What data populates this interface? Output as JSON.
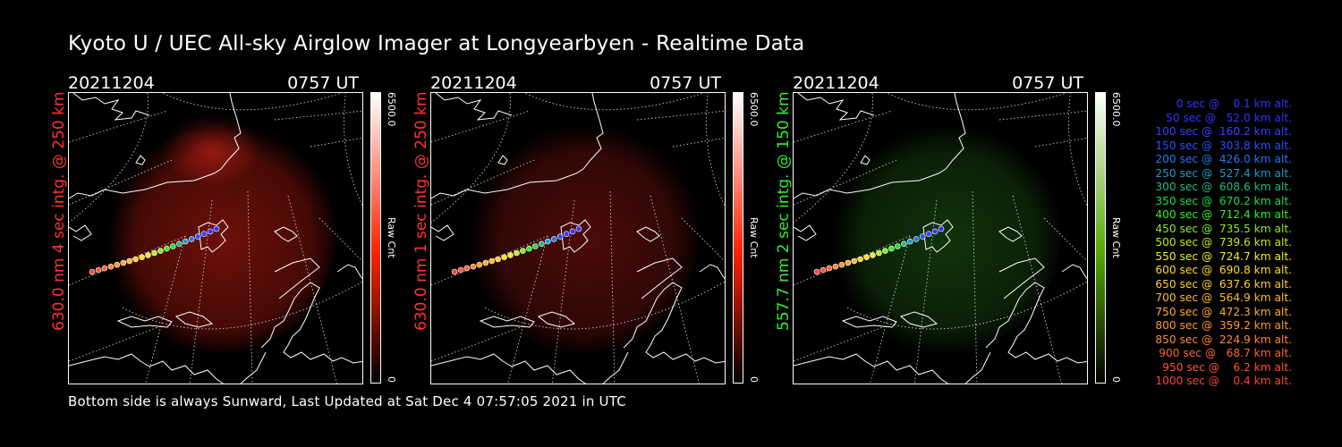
{
  "page": {
    "title": "Kyoto U / UEC All-sky Airglow Imager at Longyearbyen - Realtime Data"
  },
  "panels": [
    {
      "date": "20211204",
      "time": "0757 UT",
      "side_label": "630.0 nm 4 sec intg. @ 250 km",
      "label_color": "#ff3333",
      "colorbar_max": "6500.0",
      "colorbar_min": "0",
      "colorbar_unit": "Raw Cnt",
      "colorbar_color": "#ff2200",
      "glow_color": "#c81d12"
    },
    {
      "date": "20211204",
      "time": "0757 UT",
      "side_label": "630.0 nm 1 sec intg. @ 250 km",
      "label_color": "#ff3333",
      "colorbar_max": "6500.0",
      "colorbar_min": "0",
      "colorbar_unit": "Raw Cnt",
      "colorbar_color": "#ff2200",
      "glow_color": "#8a1510"
    },
    {
      "date": "20211204",
      "time": "0757 UT",
      "side_label": "557.7 nm 2 sec intg. @ 150 km",
      "label_color": "#33ee33",
      "colorbar_max": "6500.0",
      "colorbar_min": "0",
      "colorbar_unit": "Raw Cnt",
      "colorbar_color": "#55aa00",
      "glow_color": "#1f5c14"
    }
  ],
  "legend": {
    "items": [
      {
        "text": "0 sec @    0.1 km alt.",
        "color": "#3333ff"
      },
      {
        "text": "50 sec @   52.0 km alt.",
        "color": "#3333ff"
      },
      {
        "text": "100 sec @  160.2 km alt.",
        "color": "#3344ff"
      },
      {
        "text": "150 sec @  303.8 km alt.",
        "color": "#2255ff"
      },
      {
        "text": "200 sec @  426.0 km alt.",
        "color": "#2277ee"
      },
      {
        "text": "250 sec @  527.4 km alt.",
        "color": "#2299cc"
      },
      {
        "text": "300 sec @  608.6 km alt.",
        "color": "#22bb88"
      },
      {
        "text": "350 sec @  670.2 km alt.",
        "color": "#22dd44"
      },
      {
        "text": "400 sec @  712.4 km alt.",
        "color": "#33ee22"
      },
      {
        "text": "450 sec @  735.5 km alt.",
        "color": "#88ee22"
      },
      {
        "text": "500 sec @  739.6 km alt.",
        "color": "#bbee22"
      },
      {
        "text": "550 sec @  724.7 km alt.",
        "color": "#eeee22"
      },
      {
        "text": "600 sec @  690.8 km alt.",
        "color": "#ffdd22"
      },
      {
        "text": "650 sec @  637.6 km alt.",
        "color": "#ffcc33"
      },
      {
        "text": "700 sec @  564.9 km alt.",
        "color": "#ffbb33"
      },
      {
        "text": "750 sec @  472.3 km alt.",
        "color": "#ffaa33"
      },
      {
        "text": "800 sec @  359.2 km alt.",
        "color": "#ff9933"
      },
      {
        "text": "850 sec @  224.9 km alt.",
        "color": "#ff8833"
      },
      {
        "text": "900 sec @   68.7 km alt.",
        "color": "#ff6633"
      },
      {
        "text": "950 sec @    6.2 km alt.",
        "color": "#ff5533"
      },
      {
        "text": "1000 sec @    0.4 km alt.",
        "color": "#ff4433"
      }
    ]
  },
  "footer": {
    "text": "Bottom side is always Sunward, Last Updated at Sat Dec  4 07:57:05 2021 in UTC"
  }
}
